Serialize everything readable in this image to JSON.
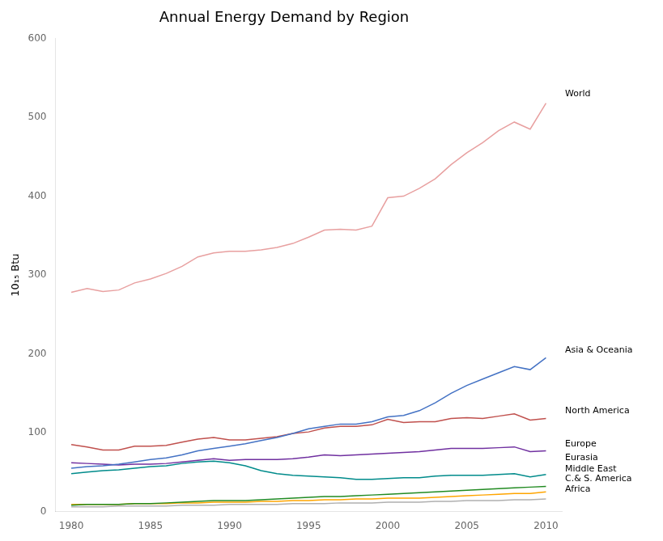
{
  "chart_data": {
    "type": "line",
    "title": "Annual Energy Demand by Region",
    "ylabel": "10₁₅ Btu",
    "xlim": [
      1979,
      2011
    ],
    "ylim": [
      0,
      600
    ],
    "xticks": [
      1980,
      1985,
      1990,
      1995,
      2000,
      2005,
      2010
    ],
    "yticks": [
      0,
      100,
      200,
      300,
      400,
      500,
      600
    ],
    "grid": false,
    "x": [
      1980,
      1981,
      1982,
      1983,
      1984,
      1985,
      1986,
      1987,
      1988,
      1989,
      1990,
      1991,
      1992,
      1993,
      1994,
      1995,
      1996,
      1997,
      1998,
      1999,
      2000,
      2001,
      2002,
      2003,
      2004,
      2005,
      2006,
      2007,
      2008,
      2009,
      2010
    ],
    "series": [
      {
        "name": "World",
        "color": "#E8A0A0",
        "values": [
          278,
          283,
          279,
          281,
          290,
          295,
          302,
          311,
          323,
          328,
          330,
          330,
          332,
          335,
          340,
          348,
          357,
          358,
          357,
          362,
          398,
          400,
          410,
          422,
          440,
          455,
          468,
          483,
          494,
          485,
          518
        ]
      },
      {
        "name": "Asia & Oceania",
        "color": "#4472C4",
        "values": [
          55,
          57,
          58,
          60,
          63,
          66,
          68,
          72,
          77,
          80,
          83,
          86,
          90,
          94,
          99,
          105,
          108,
          111,
          111,
          114,
          120,
          122,
          128,
          138,
          150,
          160,
          168,
          176,
          184,
          180,
          195
        ]
      },
      {
        "name": "North America",
        "color": "#C0504D",
        "values": [
          85,
          82,
          78,
          78,
          83,
          83,
          84,
          88,
          92,
          94,
          91,
          91,
          93,
          95,
          99,
          101,
          106,
          108,
          108,
          110,
          117,
          113,
          114,
          114,
          118,
          119,
          118,
          121,
          124,
          116,
          118
        ]
      },
      {
        "name": "Europe",
        "color": "#7030A0",
        "values": [
          62,
          61,
          60,
          59,
          60,
          60,
          61,
          63,
          65,
          67,
          65,
          66,
          66,
          66,
          67,
          69,
          72,
          71,
          72,
          73,
          74,
          75,
          76,
          78,
          80,
          80,
          80,
          81,
          82,
          76,
          77
        ]
      },
      {
        "name": "Eurasia",
        "color": "#008B8B",
        "values": [
          48,
          50,
          52,
          53,
          55,
          57,
          58,
          61,
          63,
          64,
          62,
          58,
          52,
          48,
          46,
          45,
          44,
          43,
          41,
          41,
          42,
          43,
          43,
          45,
          46,
          46,
          46,
          47,
          48,
          44,
          47
        ]
      },
      {
        "name": "Middle East",
        "color": "#228B22",
        "values": [
          8,
          9,
          9,
          9,
          10,
          10,
          11,
          12,
          13,
          14,
          14,
          14,
          15,
          16,
          17,
          18,
          19,
          19,
          20,
          21,
          22,
          23,
          24,
          25,
          26,
          27,
          28,
          29,
          30,
          31,
          32
        ]
      },
      {
        "name": "C.& S. America",
        "color": "#FFA500",
        "values": [
          9,
          9,
          9,
          9,
          10,
          10,
          10,
          11,
          11,
          12,
          12,
          12,
          13,
          13,
          14,
          14,
          15,
          15,
          16,
          16,
          17,
          17,
          17,
          18,
          19,
          20,
          21,
          22,
          23,
          23,
          25
        ]
      },
      {
        "name": "Africa",
        "color": "#B0B0B0",
        "values": [
          6,
          6,
          6,
          7,
          7,
          7,
          7,
          8,
          8,
          8,
          9,
          9,
          9,
          9,
          10,
          10,
          10,
          11,
          11,
          11,
          12,
          12,
          12,
          13,
          13,
          14,
          14,
          14,
          15,
          15,
          16
        ]
      }
    ],
    "annotations": [
      {
        "text": "World",
        "x": 2011,
        "y": 530
      },
      {
        "text": "Asia & Oceania",
        "x": 2011,
        "y": 205
      },
      {
        "text": "North America",
        "x": 2011,
        "y": 128
      },
      {
        "text": "Europe",
        "x": 2011,
        "y": 86
      },
      {
        "text": "Eurasia",
        "x": 2011,
        "y": 68
      },
      {
        "text": "Middle East",
        "x": 2011,
        "y": 54
      },
      {
        "text": "C.& S. America",
        "x": 2011,
        "y": 42
      },
      {
        "text": "Africa",
        "x": 2011,
        "y": 28
      }
    ]
  }
}
